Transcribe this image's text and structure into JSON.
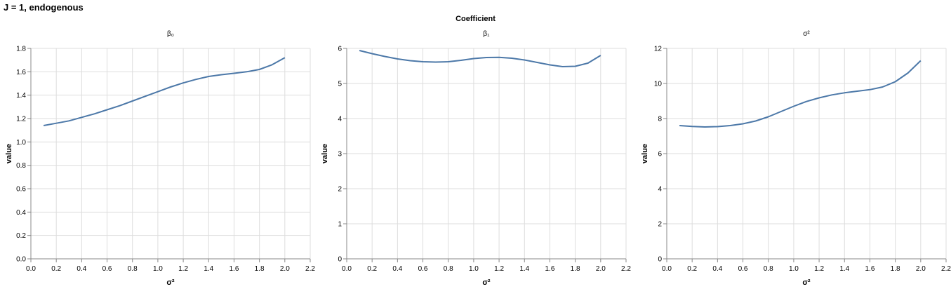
{
  "title": "J = 1, endogenous",
  "header": "Coefficient",
  "colors": {
    "line": "#4c78a8",
    "grid": "#dddddd",
    "axis": "#888888",
    "text": "#000000"
  },
  "chart_data": [
    {
      "type": "line",
      "title": "β₀",
      "xlabel": "σ²",
      "ylabel": "value",
      "xlim": [
        0,
        2.2
      ],
      "ylim": [
        0,
        1.8
      ],
      "xticks": [
        "0.0",
        "0.2",
        "0.4",
        "0.6",
        "0.8",
        "1.0",
        "1.2",
        "1.4",
        "1.6",
        "1.8",
        "2.0",
        "2.2"
      ],
      "yticks": [
        "0.0",
        "0.2",
        "0.4",
        "0.6",
        "0.8",
        "1.0",
        "1.2",
        "1.4",
        "1.6",
        "1.8"
      ],
      "grid": true,
      "x": [
        0.1,
        0.2,
        0.3,
        0.4,
        0.5,
        0.6,
        0.7,
        0.8,
        0.9,
        1.0,
        1.1,
        1.2,
        1.3,
        1.4,
        1.5,
        1.6,
        1.7,
        1.8,
        1.9,
        2.0
      ],
      "y": [
        1.14,
        1.16,
        1.18,
        1.21,
        1.24,
        1.275,
        1.31,
        1.35,
        1.39,
        1.43,
        1.47,
        1.505,
        1.535,
        1.56,
        1.575,
        1.587,
        1.6,
        1.62,
        1.66,
        1.72
      ]
    },
    {
      "type": "line",
      "title": "β₁",
      "xlabel": "σ²",
      "ylabel": "value",
      "xlim": [
        0,
        2.2
      ],
      "ylim": [
        0,
        6
      ],
      "xticks": [
        "0.0",
        "0.2",
        "0.4",
        "0.6",
        "0.8",
        "1.0",
        "1.2",
        "1.4",
        "1.6",
        "1.8",
        "2.0",
        "2.2"
      ],
      "yticks": [
        "0",
        "1",
        "2",
        "3",
        "4",
        "5",
        "6"
      ],
      "grid": true,
      "x": [
        0.1,
        0.2,
        0.3,
        0.4,
        0.5,
        0.6,
        0.7,
        0.8,
        0.9,
        1.0,
        1.1,
        1.2,
        1.3,
        1.4,
        1.5,
        1.6,
        1.7,
        1.8,
        1.9,
        2.0
      ],
      "y": [
        5.94,
        5.85,
        5.77,
        5.7,
        5.65,
        5.62,
        5.61,
        5.62,
        5.66,
        5.71,
        5.74,
        5.745,
        5.72,
        5.67,
        5.6,
        5.53,
        5.48,
        5.49,
        5.58,
        5.8
      ]
    },
    {
      "type": "line",
      "title": "σ²",
      "xlabel": "σ²",
      "ylabel": "value",
      "xlim": [
        0,
        2.2
      ],
      "ylim": [
        0,
        12
      ],
      "xticks": [
        "0.0",
        "0.2",
        "0.4",
        "0.6",
        "0.8",
        "1.0",
        "1.2",
        "1.4",
        "1.6",
        "1.8",
        "2.0",
        "2.2"
      ],
      "yticks": [
        "0",
        "2",
        "4",
        "6",
        "8",
        "10",
        "12"
      ],
      "grid": true,
      "x": [
        0.1,
        0.2,
        0.3,
        0.4,
        0.5,
        0.6,
        0.7,
        0.8,
        0.9,
        1.0,
        1.1,
        1.2,
        1.3,
        1.4,
        1.5,
        1.6,
        1.7,
        1.8,
        1.9,
        2.0
      ],
      "y": [
        7.6,
        7.55,
        7.52,
        7.54,
        7.6,
        7.7,
        7.86,
        8.1,
        8.4,
        8.7,
        8.97,
        9.18,
        9.35,
        9.47,
        9.56,
        9.65,
        9.8,
        10.1,
        10.6,
        11.3
      ]
    }
  ]
}
